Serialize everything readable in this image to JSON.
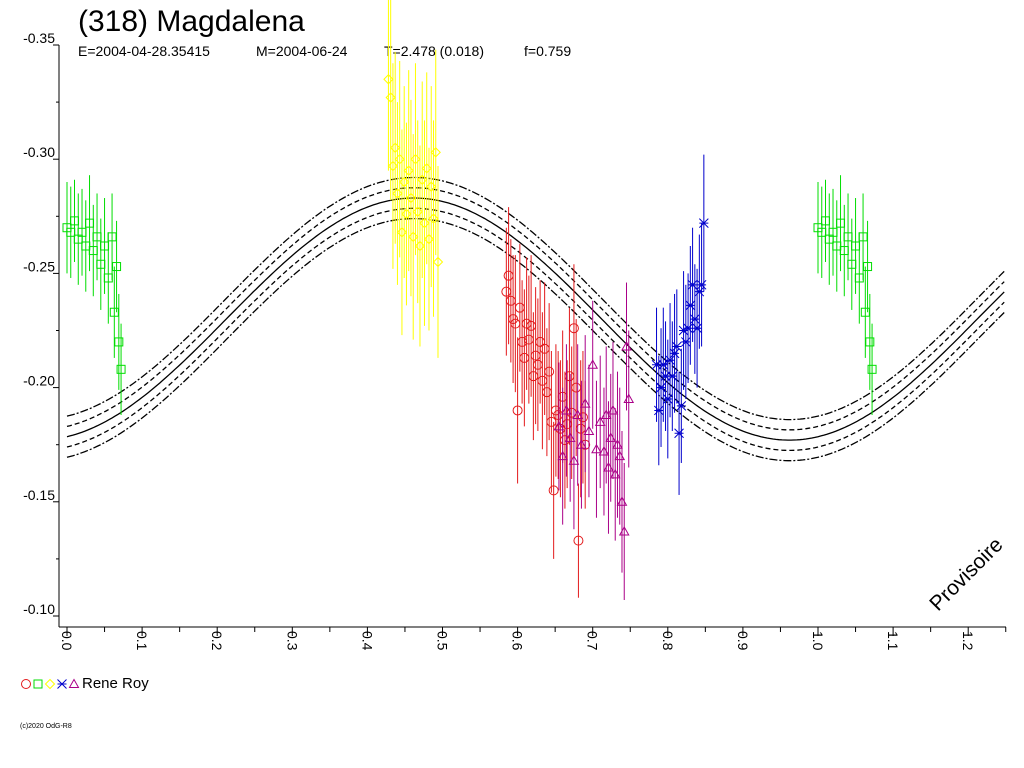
{
  "chart_data": {
    "type": "scatter",
    "title": "(318) Magdalena",
    "subtitle": {
      "epoch": "E=2004-04-28.35415",
      "mid": "M=2004-06-24",
      "period": "T=2.478 (0.018)",
      "frac": "f=0.759"
    },
    "xlabel": "",
    "ylabel": "",
    "xlim": [
      0.0,
      1.25
    ],
    "ylim": [
      -0.35,
      -0.1
    ],
    "y_inverted": true,
    "x_ticks": [
      "0.0",
      "0.1",
      "0.2",
      "0.3",
      "0.4",
      "0.5",
      "0.6",
      "0.7",
      "0.8",
      "0.9",
      "1.0",
      "1.1",
      "1.2"
    ],
    "y_ticks": [
      "-0.35",
      "-0.30",
      "-0.25",
      "-0.20",
      "-0.15",
      "-0.10"
    ],
    "grid": false,
    "fit": {
      "mean": -0.23,
      "amplitude": 0.053,
      "phase_of_max_brightness": 0.462,
      "envelope_offsets": [
        0.0045,
        0.009
      ],
      "colors": {
        "main": "#000000",
        "envelope": "#000000"
      }
    },
    "series": [
      {
        "marker": "circle",
        "color": "#e31a1c",
        "points": [
          [
            0.585,
            -0.242
          ],
          [
            0.588,
            -0.249
          ],
          [
            0.591,
            -0.238
          ],
          [
            0.594,
            -0.23
          ],
          [
            0.597,
            -0.228
          ],
          [
            0.6,
            -0.19
          ],
          [
            0.603,
            -0.235
          ],
          [
            0.606,
            -0.22
          ],
          [
            0.609,
            -0.213
          ],
          [
            0.612,
            -0.228
          ],
          [
            0.615,
            -0.221
          ],
          [
            0.618,
            -0.227
          ],
          [
            0.621,
            -0.205
          ],
          [
            0.624,
            -0.214
          ],
          [
            0.627,
            -0.21
          ],
          [
            0.63,
            -0.22
          ],
          [
            0.633,
            -0.203
          ],
          [
            0.636,
            -0.217
          ],
          [
            0.639,
            -0.198
          ],
          [
            0.642,
            -0.207
          ],
          [
            0.645,
            -0.185
          ],
          [
            0.648,
            -0.155
          ],
          [
            0.651,
            -0.19
          ],
          [
            0.654,
            -0.188
          ],
          [
            0.657,
            -0.182
          ],
          [
            0.66,
            -0.196
          ],
          [
            0.663,
            -0.177
          ],
          [
            0.666,
            -0.184
          ],
          [
            0.669,
            -0.205
          ],
          [
            0.672,
            -0.189
          ],
          [
            0.675,
            -0.226
          ],
          [
            0.678,
            -0.2
          ],
          [
            0.681,
            -0.133
          ],
          [
            0.684,
            -0.182
          ],
          [
            0.687,
            -0.187
          ],
          [
            0.69,
            -0.175
          ]
        ],
        "errors": [
          0.028,
          0.03,
          0.027,
          0.028,
          0.03,
          0.032,
          0.028,
          0.027,
          0.03,
          0.029,
          0.028,
          0.031,
          0.028,
          0.03,
          0.029,
          0.027,
          0.03,
          0.029,
          0.028,
          0.03,
          0.031,
          0.03,
          0.029,
          0.028,
          0.03,
          0.029,
          0.03,
          0.028,
          0.03,
          0.029,
          0.028,
          0.03,
          0.025,
          0.03,
          0.029,
          0.028
        ]
      },
      {
        "marker": "square",
        "color": "#00dd00",
        "points": [
          [
            0.0,
            -0.27
          ],
          [
            0.005,
            -0.268
          ],
          [
            0.01,
            -0.273
          ],
          [
            0.015,
            -0.265
          ],
          [
            0.02,
            -0.268
          ],
          [
            0.025,
            -0.262
          ],
          [
            0.03,
            -0.272
          ],
          [
            0.035,
            -0.26
          ],
          [
            0.04,
            -0.266
          ],
          [
            0.045,
            -0.254
          ],
          [
            0.05,
            -0.262
          ],
          [
            0.055,
            -0.248
          ],
          [
            0.06,
            -0.266
          ],
          [
            0.063,
            -0.233
          ],
          [
            0.066,
            -0.253
          ],
          [
            0.069,
            -0.22
          ],
          [
            0.072,
            -0.208
          ],
          [
            1.0,
            -0.27
          ],
          [
            1.005,
            -0.268
          ],
          [
            1.01,
            -0.273
          ],
          [
            1.015,
            -0.265
          ],
          [
            1.02,
            -0.268
          ],
          [
            1.025,
            -0.262
          ],
          [
            1.03,
            -0.272
          ],
          [
            1.035,
            -0.26
          ],
          [
            1.04,
            -0.266
          ],
          [
            1.045,
            -0.254
          ],
          [
            1.05,
            -0.262
          ],
          [
            1.055,
            -0.248
          ],
          [
            1.06,
            -0.266
          ],
          [
            1.063,
            -0.233
          ],
          [
            1.066,
            -0.253
          ],
          [
            1.069,
            -0.22
          ],
          [
            1.072,
            -0.208
          ]
        ],
        "errors": [
          0.02,
          0.02,
          0.018,
          0.02,
          0.019,
          0.02,
          0.021,
          0.02,
          0.019,
          0.02,
          0.021,
          0.02,
          0.019,
          0.02,
          0.02,
          0.021,
          0.02,
          0.02,
          0.02,
          0.018,
          0.02,
          0.019,
          0.02,
          0.021,
          0.02,
          0.019,
          0.02,
          0.021,
          0.02,
          0.019,
          0.02,
          0.02,
          0.021,
          0.02
        ]
      },
      {
        "marker": "diamond",
        "color": "#ffff00",
        "points": [
          [
            0.428,
            -0.335
          ],
          [
            0.431,
            -0.327
          ],
          [
            0.434,
            -0.297
          ],
          [
            0.437,
            -0.305
          ],
          [
            0.44,
            -0.285
          ],
          [
            0.443,
            -0.3
          ],
          [
            0.446,
            -0.268
          ],
          [
            0.449,
            -0.29
          ],
          [
            0.452,
            -0.276
          ],
          [
            0.455,
            -0.295
          ],
          [
            0.458,
            -0.283
          ],
          [
            0.461,
            -0.266
          ],
          [
            0.464,
            -0.3
          ],
          [
            0.467,
            -0.277
          ],
          [
            0.47,
            -0.262
          ],
          [
            0.473,
            -0.291
          ],
          [
            0.476,
            -0.272
          ],
          [
            0.479,
            -0.296
          ],
          [
            0.482,
            -0.265
          ],
          [
            0.485,
            -0.288
          ],
          [
            0.488,
            -0.274
          ],
          [
            0.491,
            -0.303
          ],
          [
            0.494,
            -0.255
          ]
        ],
        "errors": [
          0.04,
          0.045,
          0.045,
          0.042,
          0.04,
          0.043,
          0.045,
          0.042,
          0.04,
          0.044,
          0.043,
          0.045,
          0.042,
          0.04,
          0.044,
          0.043,
          0.045,
          0.042,
          0.04,
          0.044,
          0.043,
          0.045,
          0.042
        ]
      },
      {
        "marker": "star",
        "color": "#0000cc",
        "points": [
          [
            0.785,
            -0.21
          ],
          [
            0.788,
            -0.19
          ],
          [
            0.791,
            -0.2
          ],
          [
            0.794,
            -0.21
          ],
          [
            0.797,
            -0.205
          ],
          [
            0.8,
            -0.195
          ],
          [
            0.803,
            -0.212
          ],
          [
            0.806,
            -0.205
          ],
          [
            0.809,
            -0.215
          ],
          [
            0.812,
            -0.218
          ],
          [
            0.815,
            -0.18
          ],
          [
            0.818,
            -0.192
          ],
          [
            0.821,
            -0.225
          ],
          [
            0.824,
            -0.22
          ],
          [
            0.827,
            -0.226
          ],
          [
            0.83,
            -0.236
          ],
          [
            0.833,
            -0.245
          ],
          [
            0.836,
            -0.23
          ],
          [
            0.839,
            -0.226
          ],
          [
            0.842,
            -0.242
          ],
          [
            0.845,
            -0.245
          ],
          [
            0.848,
            -0.272
          ]
        ],
        "errors": [
          0.025,
          0.024,
          0.026,
          0.025,
          0.024,
          0.026,
          0.025,
          0.024,
          0.026,
          0.025,
          0.027,
          0.025,
          0.026,
          0.025,
          0.024,
          0.026,
          0.025,
          0.024,
          0.026,
          0.025,
          0.027,
          0.03
        ]
      },
      {
        "marker": "triangle",
        "color": "#aa0088",
        "points": [
          [
            0.655,
            -0.183
          ],
          [
            0.66,
            -0.17
          ],
          [
            0.665,
            -0.19
          ],
          [
            0.67,
            -0.178
          ],
          [
            0.675,
            -0.168
          ],
          [
            0.68,
            -0.188
          ],
          [
            0.685,
            -0.175
          ],
          [
            0.69,
            -0.193
          ],
          [
            0.695,
            -0.181
          ],
          [
            0.7,
            -0.21
          ],
          [
            0.705,
            -0.173
          ],
          [
            0.71,
            -0.185
          ],
          [
            0.715,
            -0.172
          ],
          [
            0.718,
            -0.188
          ],
          [
            0.721,
            -0.165
          ],
          [
            0.724,
            -0.178
          ],
          [
            0.727,
            -0.19
          ],
          [
            0.73,
            -0.162
          ],
          [
            0.733,
            -0.175
          ],
          [
            0.736,
            -0.17
          ],
          [
            0.739,
            -0.15
          ],
          [
            0.742,
            -0.137
          ],
          [
            0.745,
            -0.218
          ],
          [
            0.748,
            -0.195
          ]
        ],
        "errors": [
          0.028,
          0.03,
          0.029,
          0.028,
          0.03,
          0.031,
          0.028,
          0.03,
          0.029,
          0.028,
          0.03,
          0.029,
          0.028,
          0.03,
          0.029,
          0.028,
          0.03,
          0.029,
          0.032,
          0.03,
          0.031,
          0.03,
          0.028,
          0.03
        ]
      }
    ],
    "legend": {
      "label": "Rene Roy",
      "placement": "bottom-left",
      "symbols": [
        {
          "marker": "circle",
          "color": "#e31a1c"
        },
        {
          "marker": "square",
          "color": "#00dd00"
        },
        {
          "marker": "diamond",
          "color": "#ffff00"
        },
        {
          "marker": "star",
          "color": "#0000cc"
        },
        {
          "marker": "triangle",
          "color": "#aa0088"
        }
      ]
    },
    "stamp": "Provisoire",
    "copyright": "(c)2020 OdG-R8"
  }
}
